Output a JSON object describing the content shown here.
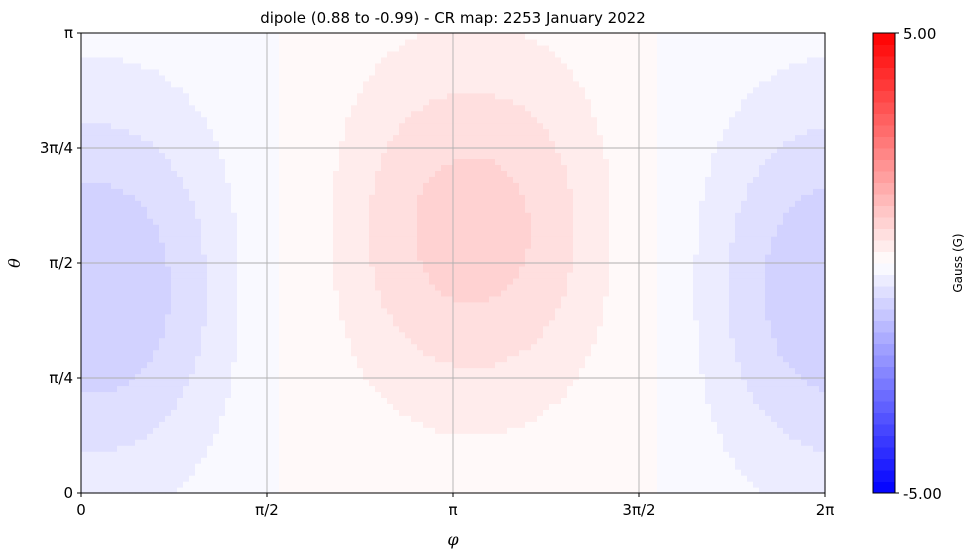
{
  "chart_data": {
    "type": "heatmap",
    "title": "dipole (0.88 to -0.99) - CR map: 2253 January 2022",
    "xlabel": "φ",
    "ylabel": "θ",
    "x_ticks": [
      "0",
      "π/2",
      "π",
      "3π/2",
      "2π"
    ],
    "y_ticks": [
      "0",
      "π/4",
      "π/2",
      "3π/4",
      "π"
    ],
    "xlim": [
      0,
      6.2832
    ],
    "ylim": [
      0,
      3.1416
    ],
    "grid": true,
    "colorbar": {
      "label": "Gauss (G)",
      "min": -5.0,
      "max": 5.0,
      "min_label": "-5.00",
      "max_label": "5.00",
      "colormap": "bwr",
      "levels": 40
    },
    "field_model": {
      "description": "dipole",
      "max_value": 0.88,
      "min_value": -0.99,
      "positive_center": {
        "phi": 3.3,
        "theta": 1.8
      },
      "negative_center": {
        "phi": 0.12,
        "theta": 1.4
      }
    }
  }
}
